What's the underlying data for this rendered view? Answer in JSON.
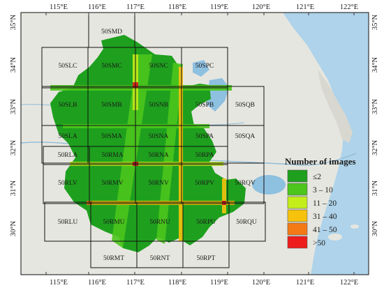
{
  "map": {
    "longitude_ticks": [
      "115°E",
      "116°E",
      "117°E",
      "118°E",
      "119°E",
      "120°E",
      "121°E",
      "122°E"
    ],
    "latitude_ticks": [
      "35°N",
      "34°N",
      "33°N",
      "32°N",
      "31°N",
      "30°N"
    ],
    "tiles": [
      {
        "id": "50SMD"
      },
      {
        "id": "50SLC"
      },
      {
        "id": "50SMC"
      },
      {
        "id": "50SNC"
      },
      {
        "id": "50SPC"
      },
      {
        "id": "50SLB"
      },
      {
        "id": "50SMB"
      },
      {
        "id": "50SNB"
      },
      {
        "id": "50SPB"
      },
      {
        "id": "50SQB"
      },
      {
        "id": "50SLA"
      },
      {
        "id": "50SMA"
      },
      {
        "id": "50SNA"
      },
      {
        "id": "50SPA"
      },
      {
        "id": "50SQA"
      },
      {
        "id": "50RLA"
      },
      {
        "id": "50RMA"
      },
      {
        "id": "50RNA"
      },
      {
        "id": "50RPA"
      },
      {
        "id": "50RLV"
      },
      {
        "id": "50RMV"
      },
      {
        "id": "50RNV"
      },
      {
        "id": "50RPV"
      },
      {
        "id": "50RQV"
      },
      {
        "id": "50RLU"
      },
      {
        "id": "50RMU"
      },
      {
        "id": "50RNU"
      },
      {
        "id": "50RPU"
      },
      {
        "id": "50RQU"
      },
      {
        "id": "50RMT"
      },
      {
        "id": "50RNT"
      },
      {
        "id": "50RPT"
      }
    ]
  },
  "legend": {
    "title": "Number of images",
    "items": [
      {
        "label": "≤2",
        "color": "#1ea01e"
      },
      {
        "label": "3 – 10",
        "color": "#4cc61c"
      },
      {
        "label": "11 – 20",
        "color": "#c4ee1a"
      },
      {
        "label": "31 – 40",
        "color": "#f6c20c"
      },
      {
        "label": "41 – 50",
        "color": "#f47a16"
      },
      {
        "label": ">50",
        "color": "#ee1c1c"
      }
    ]
  }
}
